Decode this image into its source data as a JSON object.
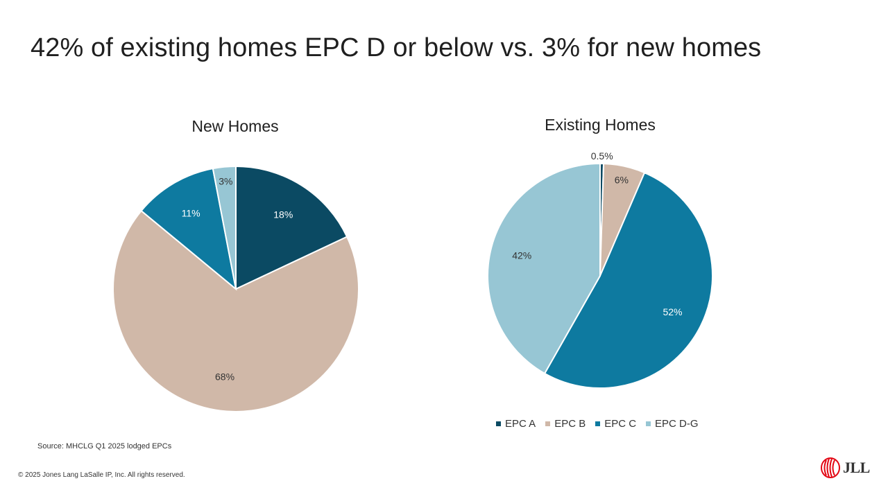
{
  "title": "42% of existing homes EPC D or below vs. 3% for new homes",
  "colors": {
    "EPC A": "#0b4a63",
    "EPC B": "#d0b8a8",
    "EPC C": "#0e7aa0",
    "EPC D-G": "#97c6d4"
  },
  "chart_data": [
    {
      "type": "pie",
      "title": "New Homes",
      "categories": [
        "EPC A",
        "EPC B",
        "EPC C",
        "EPC D-G"
      ],
      "values": [
        18,
        68,
        11,
        3
      ],
      "labels": [
        "18%",
        "68%",
        "11%",
        "3%"
      ],
      "start_angle_deg": 0,
      "direction": "clockwise"
    },
    {
      "type": "pie",
      "title": "Existing Homes",
      "categories": [
        "EPC A",
        "EPC B",
        "EPC C",
        "EPC D-G"
      ],
      "values": [
        0.5,
        6,
        52,
        42
      ],
      "labels": [
        "0.5%",
        "6%",
        "52%",
        "42%"
      ],
      "start_angle_deg": 0,
      "direction": "clockwise",
      "legend_position": "bottom"
    }
  ],
  "legend": [
    "EPC A",
    "EPC B",
    "EPC C",
    "EPC D-G"
  ],
  "footer": {
    "source": "Source: MHCLG Q1 2025 lodged EPCs",
    "copyright": "© 2025 Jones Lang LaSalle IP, Inc. All rights reserved.",
    "logo_text": "JLL"
  }
}
